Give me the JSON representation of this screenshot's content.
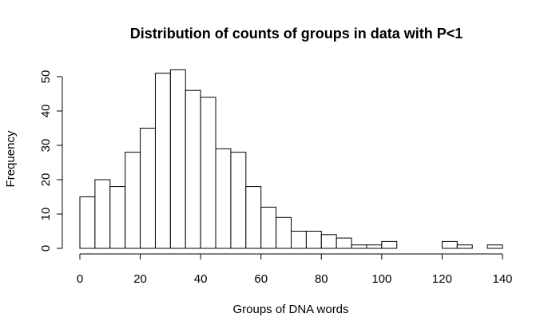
{
  "chart_data": {
    "type": "bar",
    "title": "Distribution of counts of groups in data with P<1",
    "xlabel": "Groups of DNA words",
    "ylabel": "Frequency",
    "bin_width": 5,
    "x_bins_start": [
      0,
      5,
      10,
      15,
      20,
      25,
      30,
      35,
      40,
      45,
      50,
      55,
      60,
      65,
      70,
      75,
      80,
      85,
      90,
      95,
      100,
      105,
      110,
      115,
      120,
      125,
      130,
      135
    ],
    "values": [
      15,
      20,
      18,
      28,
      35,
      51,
      52,
      46,
      44,
      29,
      28,
      18,
      12,
      9,
      5,
      5,
      4,
      3,
      1,
      1,
      2,
      0,
      0,
      0,
      2,
      1,
      0,
      1
    ],
    "xlim": [
      0,
      140
    ],
    "ylim": [
      0,
      52
    ],
    "x_ticks": [
      0,
      20,
      40,
      60,
      80,
      100,
      120,
      140
    ],
    "y_ticks": [
      0,
      10,
      20,
      30,
      40,
      50
    ],
    "grid": false
  }
}
